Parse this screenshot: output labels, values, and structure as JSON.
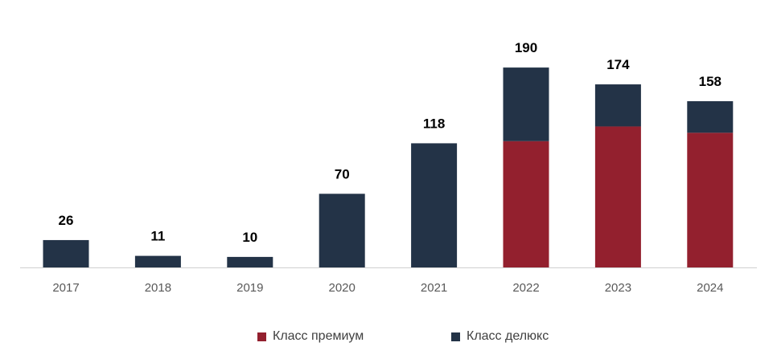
{
  "chart_data": {
    "type": "bar",
    "stacked": true,
    "categories": [
      "2017",
      "2018",
      "2019",
      "2020",
      "2021",
      "2022",
      "2023",
      "2024"
    ],
    "series": [
      {
        "name": "Класс премиум",
        "color": "#93202E",
        "values": [
          0,
          0,
          0,
          0,
          0,
          120,
          134,
          128
        ]
      },
      {
        "name": "Класс делюкс",
        "color": "#233347",
        "values": [
          26,
          11,
          10,
          70,
          118,
          70,
          40,
          30
        ]
      }
    ],
    "totals": [
      "26",
      "11",
      "10",
      "70",
      "118",
      "190",
      "174",
      "158"
    ],
    "ylim": [
      0,
      200
    ],
    "grid": false,
    "legend_position": "bottom"
  }
}
